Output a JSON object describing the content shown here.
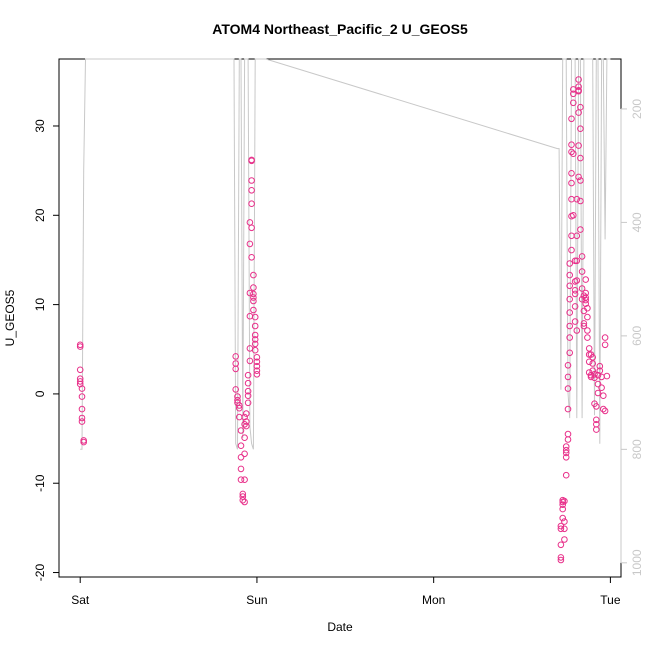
{
  "chart_data": {
    "type": "scatter",
    "title": "ATOM4 Northeast_Pacific_2 U_GEOS5",
    "xlabel": "Date",
    "ylabel": "U_GEOS5",
    "x_ticks": [
      {
        "label": "Sat",
        "value": 0
      },
      {
        "label": "Sun",
        "value": 1
      },
      {
        "label": "Mon",
        "value": 2
      },
      {
        "label": "Tue",
        "value": 3
      }
    ],
    "ylim": [
      -20.5,
      37.5
    ],
    "y_ticks": [
      -20,
      -10,
      0,
      10,
      20,
      30
    ],
    "right_axis": {
      "label": "",
      "ticks": [
        200,
        400,
        600,
        800,
        1000
      ],
      "range": [
        112,
        1025
      ],
      "reversed": true,
      "color": "#c8c8c8"
    },
    "grid": false,
    "colors": {
      "points": "#e8308a",
      "pressure_line": "#c8c8c8"
    },
    "series": [
      {
        "marker": "circle",
        "points": [
          [
            0.0,
            5.5
          ],
          [
            0.0,
            5.3
          ],
          [
            0.0,
            2.7
          ],
          [
            0.0,
            1.7
          ],
          [
            0.0,
            1.4
          ],
          [
            0.0,
            1.1
          ],
          [
            0.01,
            0.6
          ],
          [
            0.01,
            -0.3
          ],
          [
            0.01,
            -1.7
          ],
          [
            0.01,
            -2.7
          ],
          [
            0.01,
            -3.1
          ],
          [
            0.02,
            -5.2
          ],
          [
            0.02,
            -5.4
          ],
          [
            0.88,
            4.2
          ],
          [
            0.88,
            3.4
          ],
          [
            0.88,
            2.8
          ],
          [
            0.88,
            0.5
          ],
          [
            0.89,
            -0.3
          ],
          [
            0.89,
            -0.7
          ],
          [
            0.89,
            -1.0
          ],
          [
            0.9,
            -1.3
          ],
          [
            0.9,
            -1.6
          ],
          [
            0.9,
            -2.6
          ],
          [
            0.91,
            -4.1
          ],
          [
            0.91,
            -5.8
          ],
          [
            0.91,
            -7.1
          ],
          [
            0.91,
            -8.4
          ],
          [
            0.91,
            -9.6
          ],
          [
            0.92,
            -11.2
          ],
          [
            0.92,
            -11.5
          ],
          [
            0.92,
            -11.9
          ],
          [
            0.93,
            -12.1
          ],
          [
            0.93,
            -9.6
          ],
          [
            0.93,
            -6.7
          ],
          [
            0.93,
            -4.9
          ],
          [
            0.93,
            -3.4
          ],
          [
            0.93,
            -2.6
          ],
          [
            0.94,
            -3.1
          ],
          [
            0.94,
            -3.6
          ],
          [
            0.94,
            -2.2
          ],
          [
            0.95,
            -1.0
          ],
          [
            0.95,
            -0.2
          ],
          [
            0.95,
            0.3
          ],
          [
            0.95,
            1.2
          ],
          [
            0.95,
            2.1
          ],
          [
            0.96,
            3.7
          ],
          [
            0.96,
            5.1
          ],
          [
            0.96,
            8.7
          ],
          [
            0.96,
            11.3
          ],
          [
            0.96,
            16.8
          ],
          [
            0.96,
            19.2
          ],
          [
            0.97,
            21.3
          ],
          [
            0.97,
            22.8
          ],
          [
            0.97,
            23.9
          ],
          [
            0.97,
            26.2
          ],
          [
            0.97,
            26.1
          ],
          [
            0.97,
            18.6
          ],
          [
            0.97,
            15.3
          ],
          [
            0.98,
            13.3
          ],
          [
            0.98,
            11.9
          ],
          [
            0.98,
            11.2
          ],
          [
            0.98,
            10.8
          ],
          [
            0.98,
            10.4
          ],
          [
            0.98,
            9.4
          ],
          [
            0.99,
            8.6
          ],
          [
            0.99,
            7.6
          ],
          [
            0.99,
            6.6
          ],
          [
            0.99,
            6.1
          ],
          [
            0.99,
            5.6
          ],
          [
            0.99,
            4.9
          ],
          [
            1.0,
            4.1
          ],
          [
            1.0,
            3.6
          ],
          [
            1.0,
            3.1
          ],
          [
            1.0,
            2.6
          ],
          [
            1.0,
            2.2
          ],
          [
            2.72,
            -18.6
          ],
          [
            2.72,
            -18.3
          ],
          [
            2.72,
            -16.9
          ],
          [
            2.72,
            -15.1
          ],
          [
            2.72,
            -14.8
          ],
          [
            2.73,
            -13.9
          ],
          [
            2.73,
            -12.9
          ],
          [
            2.73,
            -12.4
          ],
          [
            2.73,
            -12.1
          ],
          [
            2.73,
            -11.9
          ],
          [
            2.74,
            -12.0
          ],
          [
            2.74,
            -14.3
          ],
          [
            2.74,
            -15.1
          ],
          [
            2.74,
            -16.3
          ],
          [
            2.75,
            -9.1
          ],
          [
            2.75,
            -7.1
          ],
          [
            2.75,
            -6.6
          ],
          [
            2.75,
            -6.3
          ],
          [
            2.75,
            -5.9
          ],
          [
            2.76,
            -5.1
          ],
          [
            2.76,
            -4.5
          ],
          [
            2.76,
            -1.7
          ],
          [
            2.76,
            0.6
          ],
          [
            2.76,
            1.9
          ],
          [
            2.76,
            3.2
          ],
          [
            2.77,
            4.6
          ],
          [
            2.77,
            6.3
          ],
          [
            2.77,
            7.6
          ],
          [
            2.77,
            9.1
          ],
          [
            2.77,
            10.6
          ],
          [
            2.77,
            12.1
          ],
          [
            2.77,
            13.3
          ],
          [
            2.77,
            14.6
          ],
          [
            2.78,
            16.1
          ],
          [
            2.78,
            17.7
          ],
          [
            2.78,
            19.9
          ],
          [
            2.78,
            21.8
          ],
          [
            2.78,
            23.6
          ],
          [
            2.78,
            24.7
          ],
          [
            2.78,
            27.1
          ],
          [
            2.78,
            27.9
          ],
          [
            2.78,
            30.8
          ],
          [
            2.79,
            32.6
          ],
          [
            2.79,
            33.6
          ],
          [
            2.79,
            34.1
          ],
          [
            2.79,
            26.9
          ],
          [
            2.79,
            20.0
          ],
          [
            2.8,
            14.9
          ],
          [
            2.8,
            12.6
          ],
          [
            2.8,
            11.6
          ],
          [
            2.8,
            11.2
          ],
          [
            2.8,
            9.8
          ],
          [
            2.8,
            8.1
          ],
          [
            2.81,
            7.1
          ],
          [
            2.81,
            12.7
          ],
          [
            2.81,
            14.9
          ],
          [
            2.81,
            17.7
          ],
          [
            2.81,
            21.8
          ],
          [
            2.82,
            24.3
          ],
          [
            2.82,
            27.8
          ],
          [
            2.82,
            31.5
          ],
          [
            2.82,
            33.9
          ],
          [
            2.82,
            34.4
          ],
          [
            2.82,
            35.2
          ],
          [
            2.82,
            34.0
          ],
          [
            2.83,
            32.1
          ],
          [
            2.83,
            29.7
          ],
          [
            2.83,
            26.4
          ],
          [
            2.83,
            23.9
          ],
          [
            2.83,
            21.6
          ],
          [
            2.83,
            18.4
          ],
          [
            2.84,
            15.4
          ],
          [
            2.84,
            13.7
          ],
          [
            2.84,
            11.8
          ],
          [
            2.84,
            10.6
          ],
          [
            2.85,
            9.3
          ],
          [
            2.85,
            7.9
          ],
          [
            2.85,
            7.6
          ],
          [
            2.85,
            11.0
          ],
          [
            2.86,
            12.8
          ],
          [
            2.86,
            11.3
          ],
          [
            2.86,
            10.8
          ],
          [
            2.86,
            10.5
          ],
          [
            2.86,
            10.1
          ],
          [
            2.87,
            9.6
          ],
          [
            2.87,
            8.6
          ],
          [
            2.87,
            7.1
          ],
          [
            2.87,
            6.3
          ],
          [
            2.88,
            5.1
          ],
          [
            2.88,
            4.4
          ],
          [
            2.88,
            3.6
          ],
          [
            2.88,
            2.4
          ],
          [
            2.89,
            2.1
          ],
          [
            2.89,
            1.9
          ],
          [
            2.89,
            4.4
          ],
          [
            2.9,
            4.1
          ],
          [
            2.9,
            3.4
          ],
          [
            2.9,
            2.6
          ],
          [
            2.91,
            2.2
          ],
          [
            2.91,
            1.8
          ],
          [
            2.91,
            -1.1
          ],
          [
            2.92,
            -1.4
          ],
          [
            2.92,
            -2.9
          ],
          [
            2.92,
            -3.4
          ],
          [
            2.92,
            -4.0
          ],
          [
            2.93,
            0.1
          ],
          [
            2.93,
            1.1
          ],
          [
            2.93,
            2.1
          ],
          [
            2.94,
            2.6
          ],
          [
            2.94,
            3.1
          ],
          [
            2.95,
            1.9
          ],
          [
            2.95,
            0.7
          ],
          [
            2.96,
            -0.2
          ],
          [
            2.96,
            -1.7
          ],
          [
            2.97,
            -1.9
          ],
          [
            2.97,
            6.3
          ],
          [
            2.97,
            5.5
          ],
          [
            2.98,
            2.0
          ]
        ]
      }
    ],
    "pressure_line": [
      [
        0.0,
        800
      ],
      [
        0.01,
        800
      ],
      [
        0.02,
        308
      ],
      [
        0.03,
        112
      ],
      [
        0.04,
        112
      ],
      [
        0.87,
        112
      ],
      [
        0.88,
        790
      ],
      [
        0.89,
        800
      ],
      [
        0.9,
        112
      ],
      [
        0.91,
        112
      ],
      [
        0.92,
        780
      ],
      [
        0.93,
        112
      ],
      [
        0.95,
        112
      ],
      [
        0.96,
        760
      ],
      [
        0.97,
        790
      ],
      [
        0.98,
        800
      ],
      [
        0.99,
        112
      ],
      [
        1.05,
        112
      ],
      [
        2.7,
        270
      ],
      [
        2.71,
        270
      ],
      [
        2.72,
        695
      ],
      [
        2.73,
        112
      ],
      [
        2.75,
        112
      ],
      [
        2.76,
        700
      ],
      [
        2.77,
        745
      ],
      [
        2.78,
        112
      ],
      [
        2.8,
        112
      ],
      [
        2.81,
        745
      ],
      [
        2.82,
        112
      ],
      [
        2.83,
        112
      ],
      [
        2.84,
        745
      ],
      [
        2.85,
        112
      ],
      [
        2.9,
        112
      ],
      [
        2.91,
        740
      ],
      [
        2.92,
        112
      ],
      [
        2.93,
        112
      ],
      [
        2.94,
        790
      ],
      [
        2.95,
        112
      ],
      [
        2.96,
        112
      ],
      [
        2.97,
        430
      ],
      [
        2.98,
        112
      ],
      [
        3.0,
        112
      ]
    ]
  }
}
